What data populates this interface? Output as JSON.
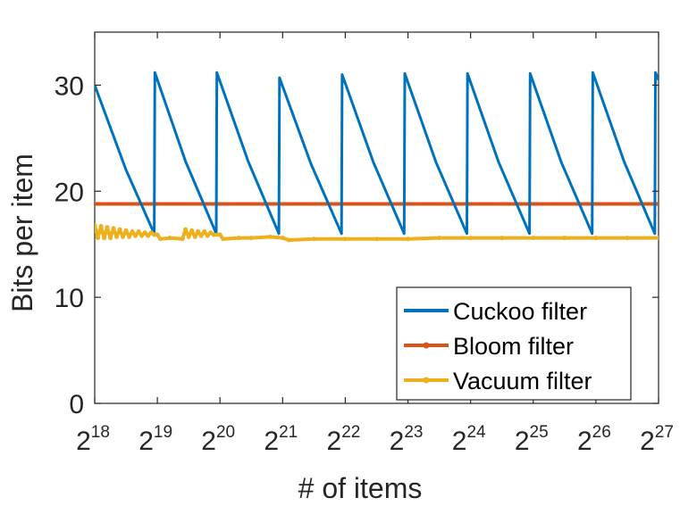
{
  "chart_data": {
    "type": "line",
    "xlabel": "# of items",
    "ylabel": "Bits per item",
    "x_scale": "log2",
    "x_range_log2": [
      18,
      27
    ],
    "ylim": [
      0,
      35
    ],
    "y_ticks": [
      "0",
      "10",
      "20",
      "30"
    ],
    "x_ticks": [
      {
        "base": "2",
        "exp": "18"
      },
      {
        "base": "2",
        "exp": "19"
      },
      {
        "base": "2",
        "exp": "20"
      },
      {
        "base": "2",
        "exp": "21"
      },
      {
        "base": "2",
        "exp": "22"
      },
      {
        "base": "2",
        "exp": "23"
      },
      {
        "base": "2",
        "exp": "24"
      },
      {
        "base": "2",
        "exp": "25"
      },
      {
        "base": "2",
        "exp": "26"
      },
      {
        "base": "2",
        "exp": "27"
      }
    ],
    "grid": false,
    "legend_position": "bottom-right",
    "series": [
      {
        "name": "Cuckoo filter",
        "color": "#0072BD",
        "marker": "none",
        "points_log2x": [
          [
            18.0,
            30.0
          ],
          [
            18.5,
            22.0
          ],
          [
            18.95,
            16.0
          ],
          [
            18.96,
            31.2
          ],
          [
            19.45,
            22.8
          ],
          [
            19.94,
            16.0
          ],
          [
            19.95,
            31.2
          ],
          [
            20.45,
            22.8
          ],
          [
            20.94,
            16.0
          ],
          [
            20.95,
            30.7
          ],
          [
            21.45,
            22.6
          ],
          [
            21.94,
            16.0
          ],
          [
            21.95,
            31.0
          ],
          [
            22.45,
            22.7
          ],
          [
            22.94,
            16.0
          ],
          [
            22.95,
            31.1
          ],
          [
            23.45,
            22.7
          ],
          [
            23.94,
            16.0
          ],
          [
            23.95,
            31.1
          ],
          [
            24.45,
            22.7
          ],
          [
            24.94,
            16.0
          ],
          [
            24.95,
            31.1
          ],
          [
            25.45,
            22.7
          ],
          [
            25.94,
            16.0
          ],
          [
            25.95,
            31.2
          ],
          [
            26.45,
            22.8
          ],
          [
            26.94,
            16.0
          ],
          [
            26.95,
            31.2
          ],
          [
            27.0,
            30.5
          ]
        ]
      },
      {
        "name": "Bloom filter",
        "color": "#D95319",
        "marker": "dot",
        "points_log2x": [
          [
            18.0,
            18.8
          ],
          [
            27.0,
            18.8
          ]
        ]
      },
      {
        "name": "Vacuum filter",
        "color": "#EDB120",
        "marker": "dot",
        "points_log2x": [
          [
            18.0,
            16.8
          ],
          [
            18.05,
            15.6
          ],
          [
            18.1,
            16.7
          ],
          [
            18.15,
            15.6
          ],
          [
            18.2,
            16.6
          ],
          [
            18.25,
            15.6
          ],
          [
            18.3,
            16.5
          ],
          [
            18.35,
            15.7
          ],
          [
            18.4,
            16.4
          ],
          [
            18.45,
            15.7
          ],
          [
            18.5,
            16.3
          ],
          [
            18.55,
            15.7
          ],
          [
            18.6,
            16.2
          ],
          [
            18.65,
            15.8
          ],
          [
            18.7,
            16.2
          ],
          [
            18.75,
            15.8
          ],
          [
            18.8,
            16.1
          ],
          [
            18.85,
            15.8
          ],
          [
            18.9,
            16.1
          ],
          [
            18.95,
            15.9
          ],
          [
            19.0,
            15.9
          ],
          [
            19.05,
            15.5
          ],
          [
            19.2,
            15.6
          ],
          [
            19.4,
            15.5
          ],
          [
            19.45,
            16.4
          ],
          [
            19.5,
            15.7
          ],
          [
            19.55,
            16.3
          ],
          [
            19.6,
            15.7
          ],
          [
            19.65,
            16.2
          ],
          [
            19.7,
            15.8
          ],
          [
            19.75,
            16.2
          ],
          [
            19.8,
            15.8
          ],
          [
            19.85,
            16.1
          ],
          [
            19.9,
            15.9
          ],
          [
            20.0,
            15.9
          ],
          [
            20.05,
            15.5
          ],
          [
            20.3,
            15.6
          ],
          [
            20.5,
            15.6
          ],
          [
            20.8,
            15.7
          ],
          [
            21.0,
            15.6
          ],
          [
            21.1,
            15.4
          ],
          [
            21.5,
            15.5
          ],
          [
            22.0,
            15.5
          ],
          [
            22.5,
            15.5
          ],
          [
            23.0,
            15.5
          ],
          [
            23.5,
            15.6
          ],
          [
            24.0,
            15.6
          ],
          [
            24.5,
            15.6
          ],
          [
            25.0,
            15.6
          ],
          [
            25.5,
            15.6
          ],
          [
            26.0,
            15.6
          ],
          [
            26.5,
            15.6
          ],
          [
            27.0,
            15.6
          ]
        ]
      }
    ]
  }
}
